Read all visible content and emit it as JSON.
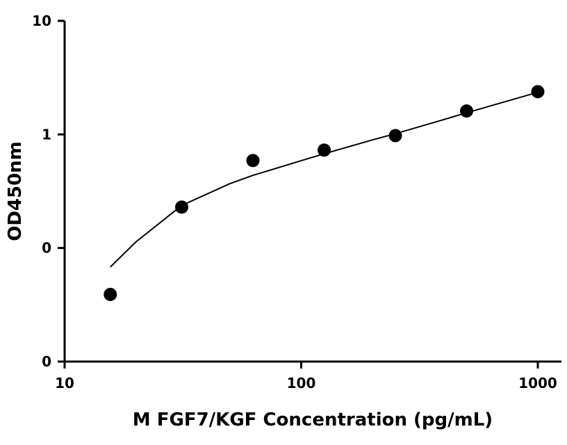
{
  "chart_data": {
    "type": "scatter",
    "title": "",
    "xlabel": "M FGF7/KGF Concentration (pg/mL)",
    "ylabel": "OD450nm",
    "x_scale": "log",
    "y_scale": "log",
    "xlim": [
      10,
      1200
    ],
    "ylim": [
      0.01,
      10
    ],
    "x_ticks": [
      {
        "value": 10,
        "label": "10"
      },
      {
        "value": 100,
        "label": "100"
      },
      {
        "value": 1000,
        "label": "1000"
      }
    ],
    "y_ticks": [
      {
        "value": 0.01,
        "label": "0"
      },
      {
        "value": 0.1,
        "label": "0"
      },
      {
        "value": 1,
        "label": "1"
      },
      {
        "value": 10,
        "label": "10"
      }
    ],
    "grid": false,
    "legend": "none",
    "series": [
      {
        "x": [
          15.6,
          31.25,
          62.5,
          125,
          250,
          500,
          1000
        ],
        "y": [
          0.039,
          0.229,
          0.589,
          0.728,
          0.976,
          1.608,
          2.38
        ]
      }
    ],
    "fit_curve": {
      "x": [
        15.6,
        20,
        31.25,
        50,
        62.5,
        100,
        125,
        200,
        250,
        400,
        500,
        750,
        1000
      ],
      "y": [
        0.068,
        0.113,
        0.237,
        0.369,
        0.436,
        0.587,
        0.675,
        0.895,
        1.015,
        1.35,
        1.55,
        1.98,
        2.35
      ]
    },
    "colors": {
      "point": "#000000",
      "line": "#000000",
      "axis": "#000000"
    }
  }
}
